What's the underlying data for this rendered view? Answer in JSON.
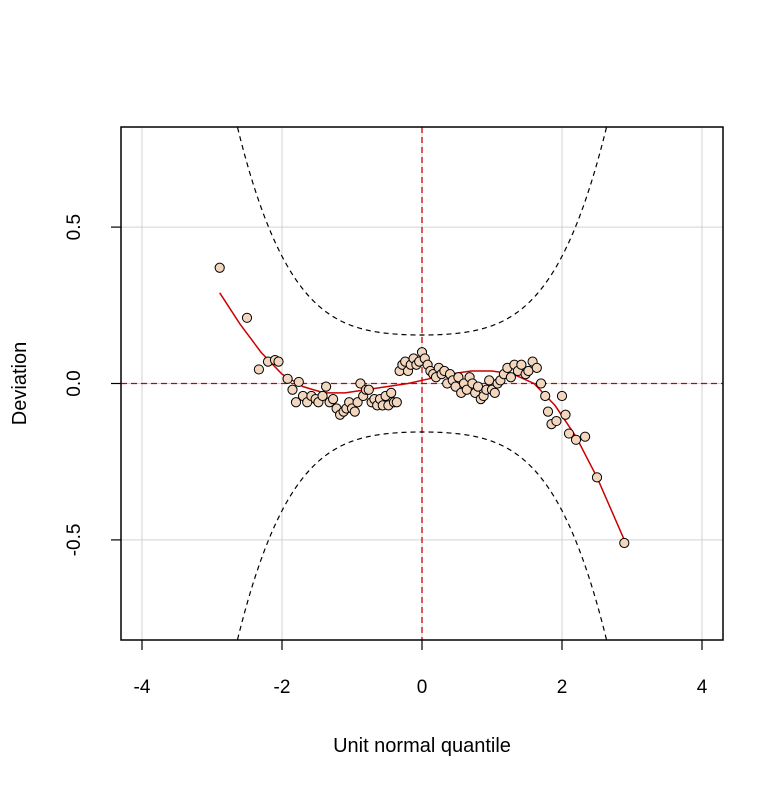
{
  "chart_data": {
    "type": "scatter",
    "title": "",
    "xlabel": "Unit normal quantile",
    "ylabel": "Deviation",
    "xlim": [
      -4.3,
      4.3
    ],
    "ylim": [
      -0.82,
      0.82
    ],
    "x_ticks": [
      -4,
      -2,
      0,
      2,
      4
    ],
    "x_tick_labels": [
      "-4",
      "-2",
      "0",
      "2",
      "4"
    ],
    "y_ticks": [
      -0.5,
      0.0,
      0.5
    ],
    "y_tick_labels": [
      "-0.5",
      "0.0",
      "0.5"
    ],
    "grid": true,
    "reference_lines": {
      "x": 0,
      "y": 0,
      "style": "dashed",
      "color": "#cc0000"
    },
    "confidence_band": {
      "style": "dashed",
      "color": "#000000",
      "min_halfwidth": 0.155
    },
    "points": {
      "fill": "#f2d6be",
      "stroke": "#000000",
      "x": [
        -2.89,
        -2.5,
        -2.33,
        -2.2,
        -2.1,
        -2.05,
        -1.92,
        -1.85,
        -1.8,
        -1.76,
        -1.7,
        -1.64,
        -1.58,
        -1.52,
        -1.48,
        -1.42,
        -1.37,
        -1.32,
        -1.27,
        -1.22,
        -1.17,
        -1.12,
        -1.08,
        -1.04,
        -1.0,
        -0.96,
        -0.92,
        -0.88,
        -0.84,
        -0.8,
        -0.76,
        -0.72,
        -0.68,
        -0.64,
        -0.6,
        -0.56,
        -0.52,
        -0.48,
        -0.44,
        -0.4,
        -0.36,
        -0.32,
        -0.28,
        -0.24,
        -0.2,
        -0.16,
        -0.12,
        -0.08,
        -0.04,
        0.0,
        0.04,
        0.08,
        0.12,
        0.16,
        0.2,
        0.24,
        0.28,
        0.32,
        0.36,
        0.4,
        0.44,
        0.48,
        0.52,
        0.56,
        0.6,
        0.64,
        0.68,
        0.72,
        0.76,
        0.8,
        0.84,
        0.88,
        0.92,
        0.96,
        1.0,
        1.04,
        1.08,
        1.12,
        1.17,
        1.22,
        1.27,
        1.32,
        1.37,
        1.42,
        1.48,
        1.52,
        1.58,
        1.64,
        1.7,
        1.76,
        1.8,
        1.85,
        1.92,
        2.0,
        2.05,
        2.1,
        2.2,
        2.33,
        2.5,
        2.89
      ],
      "y": [
        0.37,
        0.21,
        0.045,
        0.07,
        0.075,
        0.07,
        0.015,
        -0.02,
        -0.06,
        0.005,
        -0.04,
        -0.06,
        -0.04,
        -0.05,
        -0.06,
        -0.04,
        -0.01,
        -0.06,
        -0.05,
        -0.08,
        -0.1,
        -0.09,
        -0.08,
        -0.06,
        -0.08,
        -0.09,
        -0.06,
        0.0,
        -0.04,
        -0.02,
        -0.02,
        -0.06,
        -0.05,
        -0.07,
        -0.05,
        -0.07,
        -0.04,
        -0.07,
        -0.03,
        -0.06,
        -0.06,
        0.04,
        0.06,
        0.07,
        0.04,
        0.06,
        0.08,
        0.06,
        0.07,
        0.1,
        0.08,
        0.06,
        0.04,
        0.03,
        0.02,
        0.05,
        0.03,
        0.04,
        0.0,
        0.03,
        0.01,
        -0.01,
        0.02,
        -0.03,
        0.0,
        -0.02,
        0.02,
        0.0,
        -0.03,
        -0.01,
        -0.05,
        -0.04,
        -0.02,
        0.01,
        -0.02,
        -0.03,
        0.0,
        0.01,
        0.03,
        0.05,
        0.02,
        0.06,
        0.04,
        0.06,
        0.03,
        0.04,
        0.07,
        0.05,
        0.0,
        -0.04,
        -0.09,
        -0.13,
        -0.12,
        -0.04,
        -0.1,
        -0.16,
        -0.18,
        -0.17,
        -0.3,
        -0.51
      ]
    },
    "trend_line": {
      "color": "#cc0000",
      "x": [
        -2.89,
        -2.6,
        -2.3,
        -2.0,
        -1.7,
        -1.4,
        -1.1,
        -0.8,
        -0.5,
        -0.2,
        0.1,
        0.4,
        0.7,
        1.0,
        1.3,
        1.6,
        1.9,
        2.2,
        2.5,
        2.89
      ],
      "y": [
        0.29,
        0.19,
        0.1,
        0.03,
        -0.01,
        -0.03,
        -0.03,
        -0.02,
        -0.01,
        0.0,
        0.015,
        0.03,
        0.04,
        0.04,
        0.03,
        0.0,
        -0.07,
        -0.17,
        -0.3,
        -0.5
      ]
    }
  }
}
